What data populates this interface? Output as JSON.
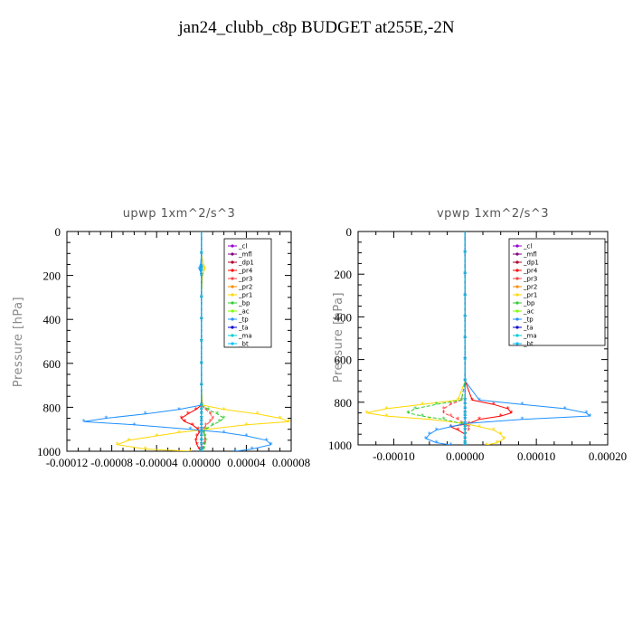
{
  "title": "jan24_clubb_c8p  BUDGET at255E,-2N",
  "chart_data": [
    {
      "type": "line",
      "title": "upwp   1xm^2/s^3",
      "ylabel": "Pressure [hPa]",
      "xlim": [
        -0.00012,
        8e-05
      ],
      "ylim": [
        1000,
        0
      ],
      "xticks": [
        "-0.00012",
        "-0.00008",
        "-0.00004",
        "0.00000",
        "0.00004",
        "0.00008"
      ],
      "xtick_values": [
        -0.00012,
        -8e-05,
        -4e-05,
        0.0,
        4e-05,
        8e-05
      ],
      "yticks": [
        0,
        200,
        400,
        600,
        800,
        1000
      ],
      "legend_position": "top-right",
      "y": [
        0,
        100,
        160,
        170,
        180,
        200,
        300,
        400,
        500,
        600,
        700,
        790,
        810,
        830,
        850,
        865,
        880,
        900,
        915,
        930,
        950,
        970,
        990,
        1000
      ],
      "series": [
        {
          "name": "_cl",
          "color": "#9400d3",
          "values": [
            0,
            0,
            0,
            0,
            0,
            0,
            0,
            0,
            0,
            0,
            0,
            0,
            0,
            0,
            0,
            0,
            0,
            0,
            0,
            0,
            0,
            0,
            0,
            0
          ]
        },
        {
          "name": "_mfl",
          "color": "#800080",
          "values": [
            0,
            0,
            0,
            0,
            0,
            0,
            0,
            0,
            0,
            0,
            0,
            0,
            0,
            0,
            0,
            0,
            0,
            0,
            0,
            0,
            0,
            0,
            0,
            0
          ]
        },
        {
          "name": "_dp1",
          "color": "#b0002a",
          "values": [
            0,
            0,
            0,
            0,
            0,
            0,
            0,
            0,
            0,
            0,
            0,
            0,
            0,
            0,
            0,
            0,
            0,
            0,
            0,
            0,
            0,
            0,
            0,
            0
          ]
        },
        {
          "name": "_pr4",
          "color": "#ff0000",
          "values": [
            0,
            0,
            0,
            0,
            0,
            0,
            0,
            0,
            0,
            0,
            0,
            0,
            -5e-06,
            -1.2e-05,
            -1.8e-05,
            -1.5e-05,
            -8e-06,
            -3e-06,
            -2e-06,
            -4e-06,
            -5e-06,
            -4e-06,
            -2e-06,
            0
          ]
        },
        {
          "name": "_pr3",
          "color": "#ff4040",
          "values": [
            0,
            0,
            0,
            0,
            0,
            0,
            0,
            0,
            0,
            0,
            0,
            0,
            4e-06,
            8e-06,
            1e-05,
            8e-06,
            4e-06,
            2e-06,
            2e-06,
            3e-06,
            3e-06,
            2e-06,
            1e-06,
            0
          ]
        },
        {
          "name": "_pr2",
          "color": "#ff8c00",
          "values": [
            0,
            0,
            0,
            0,
            0,
            0,
            0,
            0,
            0,
            0,
            0,
            0,
            0,
            0,
            0,
            0,
            0,
            0,
            0,
            0,
            0,
            0,
            0,
            0
          ]
        },
        {
          "name": "_pr1",
          "color": "#ffd700",
          "values": [
            0,
            0,
            2e-06,
            3e-06,
            2e-06,
            1e-06,
            0,
            0,
            0,
            0,
            0,
            1e-06,
            2e-05,
            5e-05,
            7e-05,
            7.8e-05,
            4e-05,
            5e-06,
            -2e-05,
            -4e-05,
            -6.5e-05,
            -7.5e-05,
            -5e-05,
            -1e-05
          ]
        },
        {
          "name": "_bp",
          "color": "#32cd32",
          "values": [
            0,
            0,
            0,
            0,
            0,
            0,
            0,
            0,
            0,
            0,
            0,
            0,
            6e-06,
            1.4e-05,
            2e-05,
            1.6e-05,
            1e-05,
            4e-06,
            2e-06,
            3e-06,
            4e-06,
            3e-06,
            2e-06,
            0
          ]
        },
        {
          "name": "_ac",
          "color": "#7fff00",
          "values": [
            0,
            0,
            0,
            0,
            0,
            0,
            0,
            0,
            0,
            0,
            0,
            0,
            0,
            0,
            0,
            0,
            0,
            0,
            0,
            0,
            0,
            0,
            0,
            0
          ]
        },
        {
          "name": "_tp",
          "color": "#1e90ff",
          "values": [
            0,
            0,
            -1e-06,
            -2e-06,
            -1e-06,
            0,
            0,
            0,
            0,
            0,
            0,
            0,
            -2e-05,
            -5e-05,
            -8.5e-05,
            -0.000105,
            -6e-05,
            -1e-05,
            2e-05,
            4e-05,
            5.8e-05,
            6.2e-05,
            4.5e-05,
            3e-05
          ]
        },
        {
          "name": "_ta",
          "color": "#0000cd",
          "values": [
            0,
            0,
            0,
            0,
            0,
            0,
            0,
            0,
            0,
            0,
            0,
            0,
            0,
            0,
            0,
            0,
            0,
            0,
            0,
            0,
            0,
            0,
            0,
            0
          ]
        },
        {
          "name": "_ma",
          "color": "#00ced1",
          "values": [
            0,
            0,
            0,
            0,
            0,
            0,
            0,
            0,
            0,
            0,
            0,
            0,
            0,
            0,
            0,
            0,
            0,
            0,
            0,
            0,
            0,
            0,
            0,
            0
          ]
        },
        {
          "name": "_bt",
          "color": "#00bfff",
          "values": [
            0,
            0,
            0,
            0,
            0,
            0,
            0,
            0,
            0,
            0,
            0,
            0,
            0,
            0,
            0,
            0,
            0,
            0,
            0,
            0,
            0,
            0,
            0,
            0
          ]
        }
      ]
    },
    {
      "type": "line",
      "title": "vpwp   1xm^2/s^3",
      "ylabel": "Pressure [hPa]",
      "xlim": [
        -0.00015,
        0.0002
      ],
      "ylim": [
        1000,
        0
      ],
      "xticks": [
        "-0.00010",
        "0.00000",
        "0.00010",
        "0.00020"
      ],
      "xtick_values": [
        -0.0001,
        0.0,
        0.0001,
        0.0002
      ],
      "yticks": [
        0,
        200,
        400,
        600,
        800,
        1000
      ],
      "legend_position": "top-right",
      "y": [
        0,
        100,
        200,
        300,
        400,
        500,
        600,
        700,
        790,
        810,
        830,
        850,
        865,
        880,
        900,
        915,
        930,
        950,
        970,
        990,
        1000
      ],
      "series": [
        {
          "name": "_cl",
          "color": "#9400d3",
          "values": [
            0,
            0,
            0,
            0,
            0,
            0,
            0,
            0,
            0,
            0,
            0,
            0,
            0,
            0,
            0,
            0,
            0,
            0,
            0,
            0,
            0
          ]
        },
        {
          "name": "_mfl",
          "color": "#800080",
          "values": [
            0,
            0,
            0,
            0,
            0,
            0,
            0,
            0,
            0,
            0,
            0,
            0,
            0,
            0,
            0,
            0,
            0,
            0,
            0,
            0,
            0
          ]
        },
        {
          "name": "_dp1",
          "color": "#b0002a",
          "values": [
            0,
            0,
            0,
            0,
            0,
            0,
            0,
            0,
            0,
            0,
            0,
            0,
            0,
            0,
            0,
            0,
            0,
            0,
            0,
            0,
            0
          ]
        },
        {
          "name": "_pr4",
          "color": "#ff0000",
          "values": [
            0,
            0,
            0,
            0,
            0,
            0,
            0,
            0,
            1e-05,
            4e-05,
            6e-05,
            6.5e-05,
            5e-05,
            2e-05,
            5e-06,
            -2e-05,
            -1e-05,
            0,
            0,
            0,
            0
          ]
        },
        {
          "name": "_pr3",
          "color": "#ff4040",
          "values": [
            0,
            0,
            0,
            0,
            0,
            0,
            0,
            0,
            -5e-06,
            -2e-05,
            -3e-05,
            -3e-05,
            -2e-05,
            -1e-05,
            0,
            5e-06,
            5e-06,
            0,
            0,
            0,
            0
          ]
        },
        {
          "name": "_pr2",
          "color": "#ff8c00",
          "values": [
            0,
            0,
            0,
            0,
            0,
            0,
            0,
            0,
            0,
            0,
            0,
            0,
            0,
            0,
            0,
            0,
            0,
            0,
            0,
            0,
            0
          ]
        },
        {
          "name": "_pr1",
          "color": "#ffd700",
          "values": [
            0,
            0,
            0,
            0,
            0,
            0,
            0,
            0,
            -1e-05,
            -6e-05,
            -0.00011,
            -0.000138,
            -0.00011,
            -5e-05,
            0,
            2e-05,
            4e-05,
            5e-05,
            5.5e-05,
            4.5e-05,
            3e-05
          ]
        },
        {
          "name": "_bp",
          "color": "#32cd32",
          "values": [
            0,
            0,
            0,
            0,
            0,
            0,
            0,
            0,
            -5e-06,
            -4e-05,
            -7e-05,
            -8e-05,
            -6e-05,
            -3e-05,
            -5e-06,
            0,
            0,
            0,
            0,
            0,
            0
          ]
        },
        {
          "name": "_ac",
          "color": "#7fff00",
          "values": [
            0,
            0,
            0,
            0,
            0,
            0,
            0,
            0,
            0,
            0,
            0,
            0,
            0,
            0,
            0,
            0,
            0,
            0,
            0,
            0,
            0
          ]
        },
        {
          "name": "_tp",
          "color": "#1e90ff",
          "values": [
            0,
            0,
            0,
            0,
            0,
            0,
            0,
            0,
            2e-05,
            8e-05,
            0.00014,
            0.00017,
            0.000175,
            8e-05,
            0,
            -2e-05,
            -4e-05,
            -5e-05,
            -5.5e-05,
            -4e-05,
            -2e-05
          ]
        },
        {
          "name": "_ta",
          "color": "#0000cd",
          "values": [
            0,
            0,
            0,
            0,
            0,
            0,
            0,
            0,
            0,
            0,
            0,
            0,
            0,
            0,
            0,
            0,
            0,
            0,
            0,
            0,
            0
          ]
        },
        {
          "name": "_ma",
          "color": "#00ced1",
          "values": [
            0,
            0,
            0,
            0,
            0,
            0,
            0,
            0,
            0,
            0,
            0,
            0,
            0,
            0,
            0,
            0,
            0,
            0,
            0,
            0,
            0
          ]
        },
        {
          "name": "_bt",
          "color": "#00bfff",
          "values": [
            0,
            0,
            0,
            0,
            0,
            0,
            0,
            0,
            0,
            0,
            0,
            0,
            0,
            0,
            0,
            0,
            0,
            0,
            0,
            0,
            0
          ]
        }
      ]
    }
  ]
}
